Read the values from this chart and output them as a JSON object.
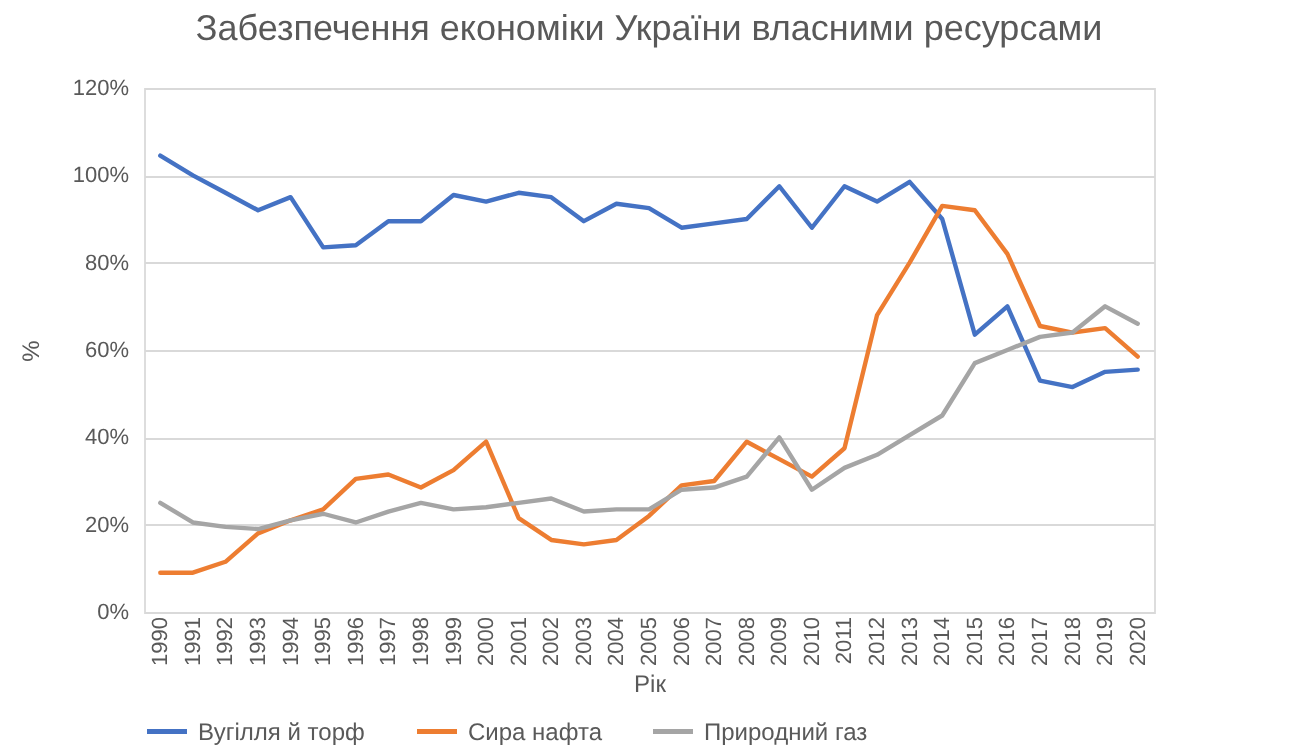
{
  "chart_data": {
    "type": "line",
    "title": "Забезпечення економіки України власними ресурсами",
    "xlabel": "Рік",
    "ylabel": "%",
    "categories": [
      "1990",
      "1991",
      "1992",
      "1993",
      "1994",
      "1995",
      "1996",
      "1997",
      "1998",
      "1999",
      "2000",
      "2001",
      "2002",
      "2003",
      "2004",
      "2005",
      "2006",
      "2007",
      "2008",
      "2009",
      "2010",
      "2011",
      "2012",
      "2013",
      "2014",
      "2015",
      "2016",
      "2017",
      "2018",
      "2019",
      "2020"
    ],
    "ylim": [
      0,
      120
    ],
    "yticks": [
      {
        "value": 0,
        "label": "0%"
      },
      {
        "value": 20,
        "label": "20%"
      },
      {
        "value": 40,
        "label": "40%"
      },
      {
        "value": 60,
        "label": "60%"
      },
      {
        "value": 80,
        "label": "80%"
      },
      {
        "value": 100,
        "label": "100%"
      },
      {
        "value": 120,
        "label": "120%"
      }
    ],
    "grid": "y",
    "legend": "bottom",
    "marker": "none",
    "line_style": "solid",
    "series": [
      {
        "name": "Вугілля й торф",
        "color": "#4472c4",
        "values": [
          104.5,
          100,
          96,
          92,
          95,
          83.5,
          84,
          89.5,
          89.5,
          95.5,
          94,
          96,
          95,
          89.5,
          93.5,
          92.5,
          88,
          89,
          90,
          97.5,
          88,
          97.5,
          94,
          98.5,
          90,
          63.5,
          70,
          53,
          51.5,
          55,
          55.5
        ]
      },
      {
        "name": "Сира нафта",
        "color": "#ed7d31",
        "values": [
          9,
          9,
          11.5,
          18,
          21,
          23.5,
          30.5,
          31.5,
          28.5,
          32.5,
          39,
          21.5,
          16.5,
          15.5,
          16.5,
          22,
          29,
          30,
          39,
          35,
          31,
          37.5,
          68,
          80,
          93,
          92,
          82,
          65.5,
          64,
          65,
          58.5
        ]
      },
      {
        "name": "Природний газ",
        "color": "#a5a5a5",
        "values": [
          25,
          20.5,
          19.5,
          19,
          21,
          22.5,
          20.5,
          23,
          25,
          23.5,
          24,
          25,
          26,
          23,
          23.5,
          23.5,
          28,
          28.5,
          31,
          40,
          28,
          33,
          36,
          40.5,
          45,
          57,
          60,
          63,
          64,
          70,
          66
        ]
      }
    ]
  }
}
